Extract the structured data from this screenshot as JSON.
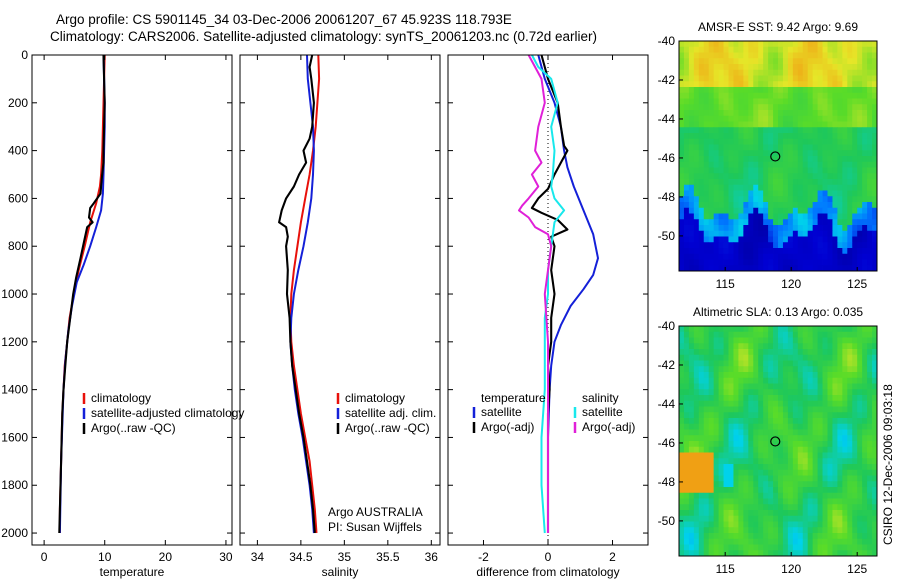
{
  "title_line1": "Argo profile: CS 5901145_34 03-Dec-2006 20061207_67 45.923S 118.793E",
  "title_line2": "Climatology: CARS2006. Satellite-adjusted climatology: synTS_20061203.nc (0.72d earlier)",
  "credit": "CSIRO 12-Dec-2006 09:03:18",
  "colors": {
    "red": "#e8100a",
    "blue": "#1420d8",
    "black": "#000000",
    "cyan": "#18e8ec",
    "magenta": "#e020d8"
  },
  "chart_data": [
    {
      "type": "line",
      "xlabel": "temperature",
      "ylabel": "",
      "xlim": [
        -2,
        31
      ],
      "ylim": [
        2050,
        0
      ],
      "xticks": [
        "0",
        "10",
        "20",
        "30"
      ],
      "yticks": [
        "0",
        "200",
        "400",
        "600",
        "800",
        "1000",
        "1200",
        "1400",
        "1600",
        "1800",
        "2000"
      ],
      "legend": {
        "placement": "lower-right",
        "entries": [
          "climatology",
          "satellite-adjusted climatology",
          "Argo(..raw -QC)"
        ]
      },
      "series": [
        {
          "name": "climatology",
          "color": "red",
          "points": [
            [
              10.0,
              0
            ],
            [
              9.9,
              100
            ],
            [
              9.8,
              200
            ],
            [
              9.7,
              300
            ],
            [
              9.6,
              400
            ],
            [
              9.4,
              500
            ],
            [
              9.2,
              550
            ],
            [
              8.6,
              620
            ],
            [
              7.6,
              700
            ],
            [
              6.7,
              800
            ],
            [
              5.7,
              900
            ],
            [
              4.9,
              1000
            ],
            [
              4.2,
              1100
            ],
            [
              3.8,
              1200
            ],
            [
              3.4,
              1300
            ],
            [
              3.2,
              1400
            ],
            [
              3.0,
              1500
            ],
            [
              2.9,
              1600
            ],
            [
              2.8,
              1700
            ],
            [
              2.7,
              1800
            ],
            [
              2.6,
              1900
            ],
            [
              2.6,
              2000
            ]
          ]
        },
        {
          "name": "satellite-adjusted climatology",
          "color": "blue",
          "points": [
            [
              9.8,
              0
            ],
            [
              9.9,
              100
            ],
            [
              10.0,
              200
            ],
            [
              10.0,
              300
            ],
            [
              9.9,
              400
            ],
            [
              9.8,
              500
            ],
            [
              9.7,
              580
            ],
            [
              9.4,
              650
            ],
            [
              8.6,
              720
            ],
            [
              7.6,
              800
            ],
            [
              6.5,
              880
            ],
            [
              5.4,
              950
            ],
            [
              4.6,
              1050
            ],
            [
              4.0,
              1150
            ],
            [
              3.5,
              1280
            ],
            [
              3.2,
              1400
            ],
            [
              3.0,
              1550
            ],
            [
              2.8,
              1700
            ],
            [
              2.7,
              1850
            ],
            [
              2.6,
              2000
            ]
          ]
        },
        {
          "name": "Argo(..raw -QC)",
          "color": "black",
          "points": [
            [
              9.8,
              0
            ],
            [
              9.9,
              100
            ],
            [
              10.0,
              200
            ],
            [
              9.9,
              300
            ],
            [
              9.8,
              400
            ],
            [
              9.8,
              450
            ],
            [
              9.5,
              520
            ],
            [
              9.3,
              580
            ],
            [
              8.2,
              620
            ],
            [
              7.6,
              640
            ],
            [
              7.4,
              680
            ],
            [
              8.0,
              700
            ],
            [
              7.1,
              720
            ],
            [
              6.6,
              780
            ],
            [
              6.0,
              850
            ],
            [
              5.3,
              930
            ],
            [
              4.8,
              1000
            ],
            [
              4.3,
              1100
            ],
            [
              3.8,
              1200
            ],
            [
              3.5,
              1300
            ],
            [
              3.2,
              1400
            ],
            [
              3.0,
              1500
            ],
            [
              2.9,
              1600
            ],
            [
              2.8,
              1700
            ],
            [
              2.7,
              1800
            ],
            [
              2.6,
              1900
            ],
            [
              2.5,
              2000
            ]
          ]
        }
      ]
    },
    {
      "type": "line",
      "xlabel": "salinity",
      "ylabel": "",
      "xlim": [
        33.8,
        36.1
      ],
      "ylim": [
        2050,
        0
      ],
      "xticks": [
        "34",
        "34.5",
        "35",
        "35.5",
        "36"
      ],
      "legend": {
        "placement": "lower-right",
        "entries": [
          "climatology",
          "satellite adj. clim.",
          "Argo(..raw -QC)"
        ]
      },
      "annotation": [
        "Argo AUSTRALIA",
        "PI: Susan Wijffels"
      ],
      "series": [
        {
          "name": "climatology",
          "color": "red",
          "points": [
            [
              34.7,
              0
            ],
            [
              34.71,
              100
            ],
            [
              34.69,
              200
            ],
            [
              34.67,
              300
            ],
            [
              34.64,
              400
            ],
            [
              34.6,
              500
            ],
            [
              34.55,
              600
            ],
            [
              34.5,
              700
            ],
            [
              34.46,
              800
            ],
            [
              34.42,
              900
            ],
            [
              34.39,
              1000
            ],
            [
              34.38,
              1100
            ],
            [
              34.39,
              1200
            ],
            [
              34.42,
              1300
            ],
            [
              34.46,
              1400
            ],
            [
              34.5,
              1500
            ],
            [
              34.55,
              1600
            ],
            [
              34.6,
              1700
            ],
            [
              34.63,
              1800
            ],
            [
              34.66,
              1900
            ],
            [
              34.68,
              2000
            ]
          ]
        },
        {
          "name": "satellite adj. clim.",
          "color": "blue",
          "points": [
            [
              34.57,
              0
            ],
            [
              34.58,
              100
            ],
            [
              34.61,
              200
            ],
            [
              34.64,
              300
            ],
            [
              34.65,
              400
            ],
            [
              34.64,
              500
            ],
            [
              34.62,
              600
            ],
            [
              34.58,
              700
            ],
            [
              34.53,
              800
            ],
            [
              34.47,
              900
            ],
            [
              34.42,
              1000
            ],
            [
              34.39,
              1100
            ],
            [
              34.38,
              1200
            ],
            [
              34.4,
              1300
            ],
            [
              34.43,
              1400
            ],
            [
              34.47,
              1500
            ],
            [
              34.52,
              1600
            ],
            [
              34.56,
              1700
            ],
            [
              34.6,
              1800
            ],
            [
              34.63,
              1900
            ],
            [
              34.65,
              2000
            ]
          ]
        },
        {
          "name": "Argo(..raw -QC)",
          "color": "black",
          "points": [
            [
              34.63,
              0
            ],
            [
              34.6,
              50
            ],
            [
              34.62,
              100
            ],
            [
              34.65,
              200
            ],
            [
              34.63,
              300
            ],
            [
              34.6,
              350
            ],
            [
              34.53,
              400
            ],
            [
              34.56,
              450
            ],
            [
              34.48,
              500
            ],
            [
              34.42,
              550
            ],
            [
              34.33,
              600
            ],
            [
              34.28,
              650
            ],
            [
              34.25,
              700
            ],
            [
              34.33,
              720
            ],
            [
              34.35,
              760
            ],
            [
              34.33,
              800
            ],
            [
              34.35,
              900
            ],
            [
              34.34,
              1000
            ],
            [
              34.37,
              1100
            ],
            [
              34.38,
              1200
            ],
            [
              34.4,
              1300
            ],
            [
              34.44,
              1400
            ],
            [
              34.48,
              1500
            ],
            [
              34.53,
              1600
            ],
            [
              34.57,
              1700
            ],
            [
              34.61,
              1800
            ],
            [
              34.64,
              1900
            ],
            [
              34.66,
              2000
            ]
          ]
        }
      ]
    },
    {
      "type": "line",
      "xlabel": "difference from climatology",
      "ylabel": "",
      "xlim": [
        -3.1,
        3.1
      ],
      "ylim": [
        2050,
        0
      ],
      "xticks": [
        "-2",
        "0",
        "2"
      ],
      "legend": {
        "placement": "lower-center",
        "columns": [
          {
            "heading": "temperature",
            "entries": [
              "satellite",
              "Argo(-adj)"
            ]
          },
          {
            "heading": "salinity",
            "entries": [
              "satellite",
              "Argo(-adj)"
            ]
          }
        ]
      },
      "series": [
        {
          "name": "temperature satellite",
          "color": "blue",
          "points": [
            [
              -0.3,
              0
            ],
            [
              -0.1,
              100
            ],
            [
              0.2,
              200
            ],
            [
              0.4,
              300
            ],
            [
              0.5,
              400
            ],
            [
              0.6,
              470
            ],
            [
              0.8,
              550
            ],
            [
              1.1,
              650
            ],
            [
              1.4,
              750
            ],
            [
              1.55,
              850
            ],
            [
              1.4,
              920
            ],
            [
              1.1,
              980
            ],
            [
              0.7,
              1050
            ],
            [
              0.4,
              1130
            ],
            [
              0.2,
              1200
            ],
            [
              0.1,
              1300
            ],
            [
              0.05,
              1400
            ],
            [
              0.0,
              1600
            ],
            [
              0.0,
              1800
            ],
            [
              0.0,
              2000
            ]
          ]
        },
        {
          "name": "temperature Argo(-adj)",
          "color": "black",
          "points": [
            [
              -0.2,
              0
            ],
            [
              0.0,
              100
            ],
            [
              0.3,
              200
            ],
            [
              0.4,
              300
            ],
            [
              0.5,
              380
            ],
            [
              0.6,
              400
            ],
            [
              0.4,
              450
            ],
            [
              0.2,
              500
            ],
            [
              0.0,
              560
            ],
            [
              -0.3,
              600
            ],
            [
              -0.5,
              640
            ],
            [
              -0.2,
              660
            ],
            [
              0.3,
              690
            ],
            [
              0.6,
              730
            ],
            [
              0.1,
              760
            ],
            [
              0.2,
              800
            ],
            [
              0.1,
              900
            ],
            [
              0.2,
              1000
            ],
            [
              0.1,
              1100
            ],
            [
              0.1,
              1200
            ],
            [
              0.0,
              1300
            ],
            [
              0.05,
              1400
            ],
            [
              0.0,
              1500
            ],
            [
              0.0,
              1600
            ],
            [
              0.0,
              1800
            ],
            [
              0.0,
              2000
            ]
          ]
        },
        {
          "name": "salinity satellite",
          "color": "cyan",
          "points": [
            [
              -0.5,
              0
            ],
            [
              -0.3,
              50
            ],
            [
              0.1,
              100
            ],
            [
              0.3,
              200
            ],
            [
              0.1,
              300
            ],
            [
              0.2,
              400
            ],
            [
              0.15,
              500
            ],
            [
              0.1,
              550
            ],
            [
              0.2,
              600
            ],
            [
              0.5,
              650
            ],
            [
              0.2,
              700
            ],
            [
              0.1,
              800
            ],
            [
              0.0,
              900
            ],
            [
              0.0,
              1000
            ],
            [
              -0.1,
              1100
            ],
            [
              -0.1,
              1200
            ],
            [
              -0.1,
              1300
            ],
            [
              -0.1,
              1400
            ],
            [
              -0.2,
              1600
            ],
            [
              -0.2,
              1800
            ],
            [
              -0.1,
              2000
            ]
          ]
        },
        {
          "name": "salinity Argo(-adj)",
          "color": "magenta",
          "points": [
            [
              -0.6,
              0
            ],
            [
              -0.4,
              50
            ],
            [
              -0.2,
              100
            ],
            [
              -0.1,
              200
            ],
            [
              -0.3,
              300
            ],
            [
              -0.4,
              400
            ],
            [
              -0.2,
              450
            ],
            [
              -0.5,
              500
            ],
            [
              -0.3,
              550
            ],
            [
              -0.6,
              600
            ],
            [
              -0.8,
              630
            ],
            [
              -0.9,
              650
            ],
            [
              -0.6,
              680
            ],
            [
              -0.4,
              720
            ],
            [
              0.0,
              750
            ],
            [
              0.1,
              800
            ],
            [
              0.0,
              900
            ],
            [
              -0.1,
              1000
            ],
            [
              -0.05,
              1100
            ],
            [
              0.0,
              1200
            ],
            [
              0.0,
              1400
            ],
            [
              0.0,
              2000
            ]
          ]
        }
      ]
    },
    {
      "type": "heatmap",
      "title": "AMSR-E SST: 9.42 Argo: 9.69",
      "xlim": [
        111.5,
        126.5
      ],
      "ylim": [
        -51.8,
        -40
      ],
      "xticks": [
        "115",
        "120",
        "125"
      ],
      "yticks": [
        "-40",
        "-42",
        "-44",
        "-46",
        "-48",
        "-50"
      ],
      "marker": {
        "lon": 118.793,
        "lat": -45.923
      }
    },
    {
      "type": "heatmap",
      "title": "Altimetric SLA: 0.13 Argo: 0.035",
      "xlim": [
        111.5,
        126.5
      ],
      "ylim": [
        -51.8,
        -40
      ],
      "xticks": [
        "115",
        "120",
        "125"
      ],
      "yticks": [
        "-40",
        "-42",
        "-44",
        "-46",
        "-48",
        "-50"
      ],
      "marker": {
        "lon": 118.793,
        "lat": -45.923
      }
    }
  ]
}
